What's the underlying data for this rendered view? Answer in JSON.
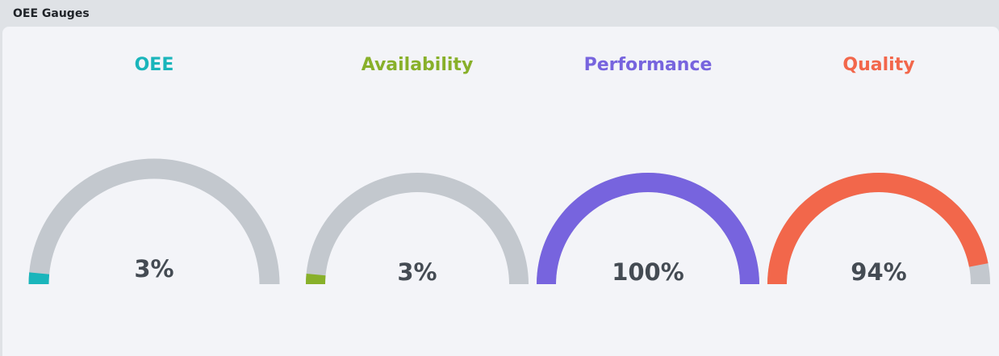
{
  "panel": {
    "title": "OEE Gauges"
  },
  "track_color": "#c3c8ce",
  "gauges": [
    {
      "label": "OEE",
      "value": 3,
      "value_text": "3%",
      "color": "#1ab5bb"
    },
    {
      "label": "Availability",
      "value": 3,
      "value_text": "3%",
      "color": "#88b02a"
    },
    {
      "label": "Performance",
      "value": 100,
      "value_text": "100%",
      "color": "#7764de"
    },
    {
      "label": "Quality",
      "value": 94,
      "value_text": "94%",
      "color": "#f2674b"
    }
  ]
}
